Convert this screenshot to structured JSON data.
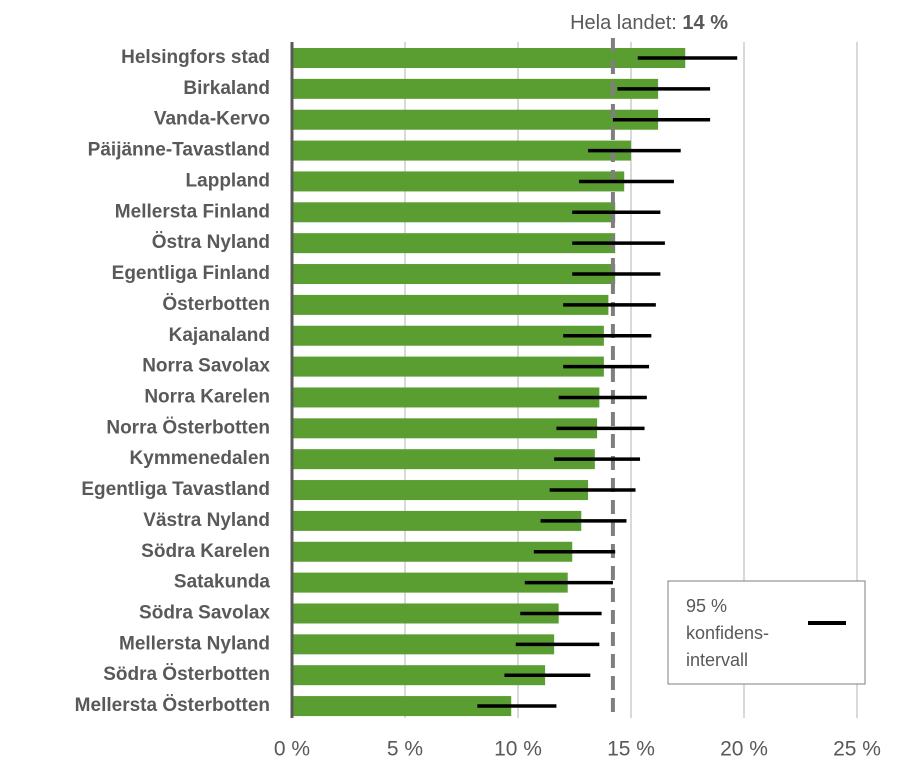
{
  "chart_data": {
    "type": "bar",
    "orientation": "horizontal",
    "categories": [
      "Helsingfors stad",
      "Birkaland",
      "Vanda-Kervo",
      "Päijänne-Tavastland",
      "Lappland",
      "Mellersta Finland",
      "Östra Nyland",
      "Egentliga Finland",
      "Österbotten",
      "Kajanaland",
      "Norra Savolax",
      "Norra Karelen",
      "Norra Österbotten",
      "Kymmenedalen",
      "Egentliga Tavastland",
      "Västra Nyland",
      "Södra Karelen",
      "Satakunda",
      "Södra Savolax",
      "Mellersta Nyland",
      "Södra Österbotten",
      "Mellersta Österbotten"
    ],
    "values": [
      17.4,
      16.2,
      16.2,
      15.0,
      14.7,
      14.3,
      14.3,
      14.3,
      14.0,
      13.8,
      13.8,
      13.6,
      13.5,
      13.4,
      13.1,
      12.8,
      12.4,
      12.2,
      11.8,
      11.6,
      11.2,
      9.7
    ],
    "ci_low": [
      15.3,
      14.4,
      14.2,
      13.1,
      12.7,
      12.4,
      12.4,
      12.4,
      12.0,
      12.0,
      12.0,
      11.8,
      11.7,
      11.6,
      11.4,
      11.0,
      10.7,
      10.3,
      10.1,
      9.9,
      9.4,
      8.2
    ],
    "ci_high": [
      19.7,
      18.5,
      18.5,
      17.2,
      16.9,
      16.3,
      16.5,
      16.3,
      16.1,
      15.9,
      15.8,
      15.7,
      15.6,
      15.4,
      15.2,
      14.8,
      14.3,
      14.2,
      13.7,
      13.6,
      13.2,
      11.7
    ],
    "color": "#5a9e32",
    "error_color": "#000000",
    "xlim": [
      0,
      25
    ],
    "xticks": [
      {
        "value": 0,
        "label": "0 %"
      },
      {
        "value": 5,
        "label": "5 %"
      },
      {
        "value": 10,
        "label": "10 %"
      },
      {
        "value": 15,
        "label": "15 %"
      },
      {
        "value": 20,
        "label": "20 %"
      },
      {
        "value": 25,
        "label": "25 %"
      }
    ],
    "grid": true,
    "reference_line": {
      "text": "Hela landet:",
      "value": 14.2,
      "value_label": "14 %"
    },
    "legend": {
      "lines": [
        "95 %",
        "konfidens-",
        "intervall"
      ]
    }
  }
}
